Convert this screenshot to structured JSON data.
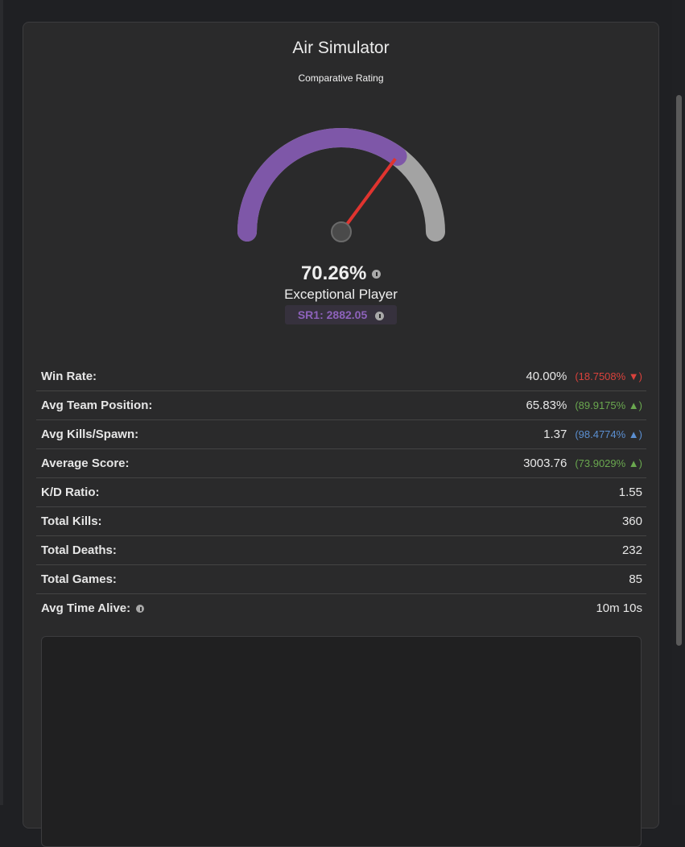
{
  "card": {
    "title": "Air Simulator",
    "subtitle": "Comparative Rating",
    "gauge": {
      "value": 70.26,
      "label": "70.26%",
      "fill_color": "#7e57a8",
      "rest_color": "#a3a3a3",
      "needle_color": "#e0342f"
    },
    "rating_label": "Exceptional Player",
    "sr": "SR1: 2882.05",
    "stats": [
      {
        "label": "Win Rate:",
        "value": "40.00%",
        "delta": "(18.7508% ▼)",
        "delta_color": "#d9423c"
      },
      {
        "label": "Avg Team Position:",
        "value": "65.83%",
        "delta": "(89.9175% ▲)",
        "delta_color": "#6aa84f"
      },
      {
        "label": "Avg Kills/Spawn:",
        "value": "1.37",
        "delta": "(98.4774% ▲)",
        "delta_color": "#5b8fd1"
      },
      {
        "label": "Average Score:",
        "value": "3003.76",
        "delta": "(73.9029% ▲)",
        "delta_color": "#6aa84f"
      },
      {
        "label": "K/D Ratio:",
        "value": "1.55"
      },
      {
        "label": "Total Kills:",
        "value": "360"
      },
      {
        "label": "Total Deaths:",
        "value": "232"
      },
      {
        "label": "Total Games:",
        "value": "85"
      },
      {
        "label": "Avg Time Alive:",
        "value": "10m 10s",
        "info": true
      }
    ]
  }
}
